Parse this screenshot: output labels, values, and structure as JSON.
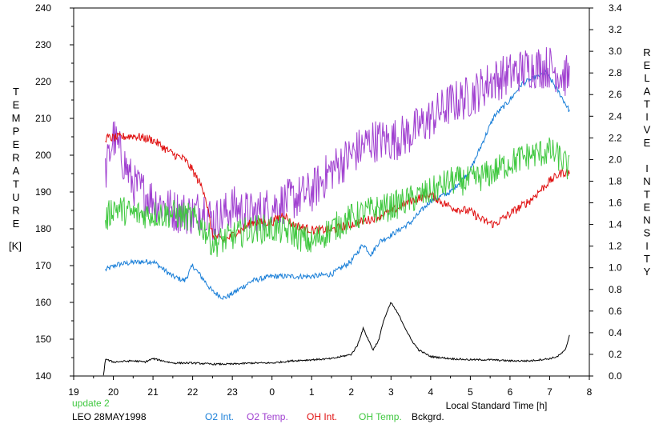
{
  "chart_data": {
    "type": "line",
    "xlabel": "Local Standard Time [h]",
    "y_left_label": "TEMPERATURE",
    "y_left_unit": "[K]",
    "y_right_label": "RELATIVE INTENSITY",
    "x_ticks": [
      "19",
      "20",
      "21",
      "22",
      "23",
      "0",
      "1",
      "2",
      "3",
      "4",
      "5",
      "6",
      "7",
      "8"
    ],
    "x_range": [
      19,
      8
    ],
    "y_left_ticks": [
      140,
      150,
      160,
      170,
      180,
      190,
      200,
      210,
      220,
      230,
      240
    ],
    "y_left_range": [
      140,
      240
    ],
    "y_right_ticks": [
      "0.0",
      "0.2",
      "0.4",
      "0.6",
      "0.8",
      "1.0",
      "1.2",
      "1.4",
      "1.6",
      "1.8",
      "2.0",
      "2.2",
      "2.4",
      "2.6",
      "2.8",
      "3.0",
      "3.2",
      "3.4"
    ],
    "y_right_range": [
      0.0,
      3.4
    ],
    "grid": false,
    "series": [
      {
        "name": "O2 Int.",
        "axis": "right",
        "color": "#1a7fd8",
        "noise": 0.025,
        "x": [
          19.8,
          20.1,
          20.5,
          21.0,
          21.5,
          21.8,
          22.0,
          22.3,
          22.5,
          22.8,
          23.0,
          23.5,
          0.0,
          0.5,
          1.0,
          1.5,
          2.0,
          2.3,
          2.5,
          2.7,
          3.0,
          3.5,
          4.0,
          4.5,
          5.0,
          5.3,
          5.6,
          6.0,
          6.3,
          6.6,
          6.9,
          7.1,
          7.3,
          7.5
        ],
        "values": [
          0.98,
          1.03,
          1.05,
          1.06,
          0.92,
          0.88,
          1.02,
          0.88,
          0.78,
          0.72,
          0.76,
          0.88,
          0.92,
          0.92,
          0.92,
          0.94,
          1.06,
          1.22,
          1.12,
          1.24,
          1.3,
          1.42,
          1.62,
          1.7,
          1.9,
          2.15,
          2.4,
          2.55,
          2.7,
          2.75,
          2.8,
          2.7,
          2.58,
          2.45
        ]
      },
      {
        "name": "O2 Temp.",
        "axis": "left",
        "color": "#a040d0",
        "noise": 6,
        "x": [
          19.8,
          20.0,
          20.2,
          20.5,
          21.0,
          21.5,
          22.0,
          22.3,
          22.5,
          22.8,
          23.0,
          23.5,
          0.0,
          0.5,
          1.0,
          1.5,
          2.0,
          2.5,
          3.0,
          3.5,
          4.0,
          4.5,
          5.0,
          5.5,
          6.0,
          6.5,
          7.0,
          7.3,
          7.5
        ],
        "values": [
          195,
          205,
          200,
          192,
          188,
          185,
          184,
          186,
          182,
          184,
          186,
          184,
          186,
          188,
          190,
          196,
          200,
          204,
          204,
          206,
          210,
          214,
          216,
          220,
          222,
          224,
          224,
          222,
          221
        ]
      },
      {
        "name": "OH Int.",
        "axis": "right",
        "color": "#e01010",
        "noise": 0.04,
        "x": [
          19.8,
          20.0,
          20.5,
          21.0,
          21.5,
          21.8,
          22.0,
          22.3,
          22.5,
          22.8,
          23.0,
          23.5,
          0.0,
          0.3,
          0.5,
          1.0,
          1.5,
          2.0,
          2.5,
          3.0,
          3.5,
          4.0,
          4.3,
          4.6,
          5.0,
          5.3,
          5.6,
          6.0,
          6.5,
          7.0,
          7.3,
          7.5
        ],
        "values": [
          2.2,
          2.2,
          2.22,
          2.18,
          2.05,
          2.0,
          1.9,
          1.7,
          1.3,
          1.25,
          1.3,
          1.42,
          1.42,
          1.5,
          1.4,
          1.35,
          1.35,
          1.4,
          1.45,
          1.52,
          1.62,
          1.68,
          1.6,
          1.55,
          1.52,
          1.44,
          1.4,
          1.5,
          1.62,
          1.8,
          1.88,
          1.88
        ]
      },
      {
        "name": "OH Temp.",
        "axis": "left",
        "color": "#40c840",
        "noise": 4,
        "x": [
          19.8,
          20.0,
          20.5,
          21.0,
          21.5,
          22.0,
          22.3,
          22.5,
          22.8,
          23.0,
          23.5,
          0.0,
          0.5,
          1.0,
          1.5,
          2.0,
          2.5,
          3.0,
          3.5,
          4.0,
          4.5,
          5.0,
          5.5,
          6.0,
          6.5,
          7.0,
          7.3,
          7.5
        ],
        "values": [
          182,
          186,
          184,
          184,
          184,
          183,
          180,
          176,
          177,
          178,
          180,
          180,
          179,
          176,
          180,
          183,
          185,
          186,
          188,
          190,
          193,
          193,
          195,
          198,
          200,
          201,
          199,
          196
        ]
      },
      {
        "name": "Bckgrd.",
        "axis": "right",
        "color": "#000000",
        "noise": 0.008,
        "x": [
          19.75,
          19.8,
          19.9,
          20.0,
          20.5,
          20.8,
          21.0,
          21.5,
          22.0,
          22.5,
          23.0,
          23.5,
          0.0,
          0.5,
          1.0,
          1.5,
          2.0,
          2.15,
          2.3,
          2.45,
          2.55,
          2.7,
          2.8,
          3.0,
          3.2,
          3.5,
          3.7,
          4.0,
          4.5,
          5.0,
          5.5,
          6.0,
          6.5,
          7.0,
          7.2,
          7.4,
          7.5
        ],
        "values": [
          0.0,
          0.16,
          0.14,
          0.13,
          0.14,
          0.13,
          0.16,
          0.12,
          0.12,
          0.11,
          0.11,
          0.12,
          0.12,
          0.14,
          0.15,
          0.16,
          0.2,
          0.28,
          0.44,
          0.32,
          0.24,
          0.34,
          0.5,
          0.68,
          0.56,
          0.34,
          0.24,
          0.18,
          0.16,
          0.15,
          0.15,
          0.14,
          0.14,
          0.16,
          0.18,
          0.24,
          0.38
        ]
      }
    ]
  },
  "footer": {
    "update": "update 2",
    "station": "LEO 28MAY1998",
    "legend": [
      {
        "label": "O2 Int.",
        "color": "#1a7fd8"
      },
      {
        "label": "O2 Temp.",
        "color": "#a040d0"
      },
      {
        "label": "OH Int.",
        "color": "#e01010"
      },
      {
        "label": "OH Temp.",
        "color": "#40c840"
      },
      {
        "label": "Bckgrd.",
        "color": "#000000"
      }
    ],
    "update_color": "#40c840"
  }
}
